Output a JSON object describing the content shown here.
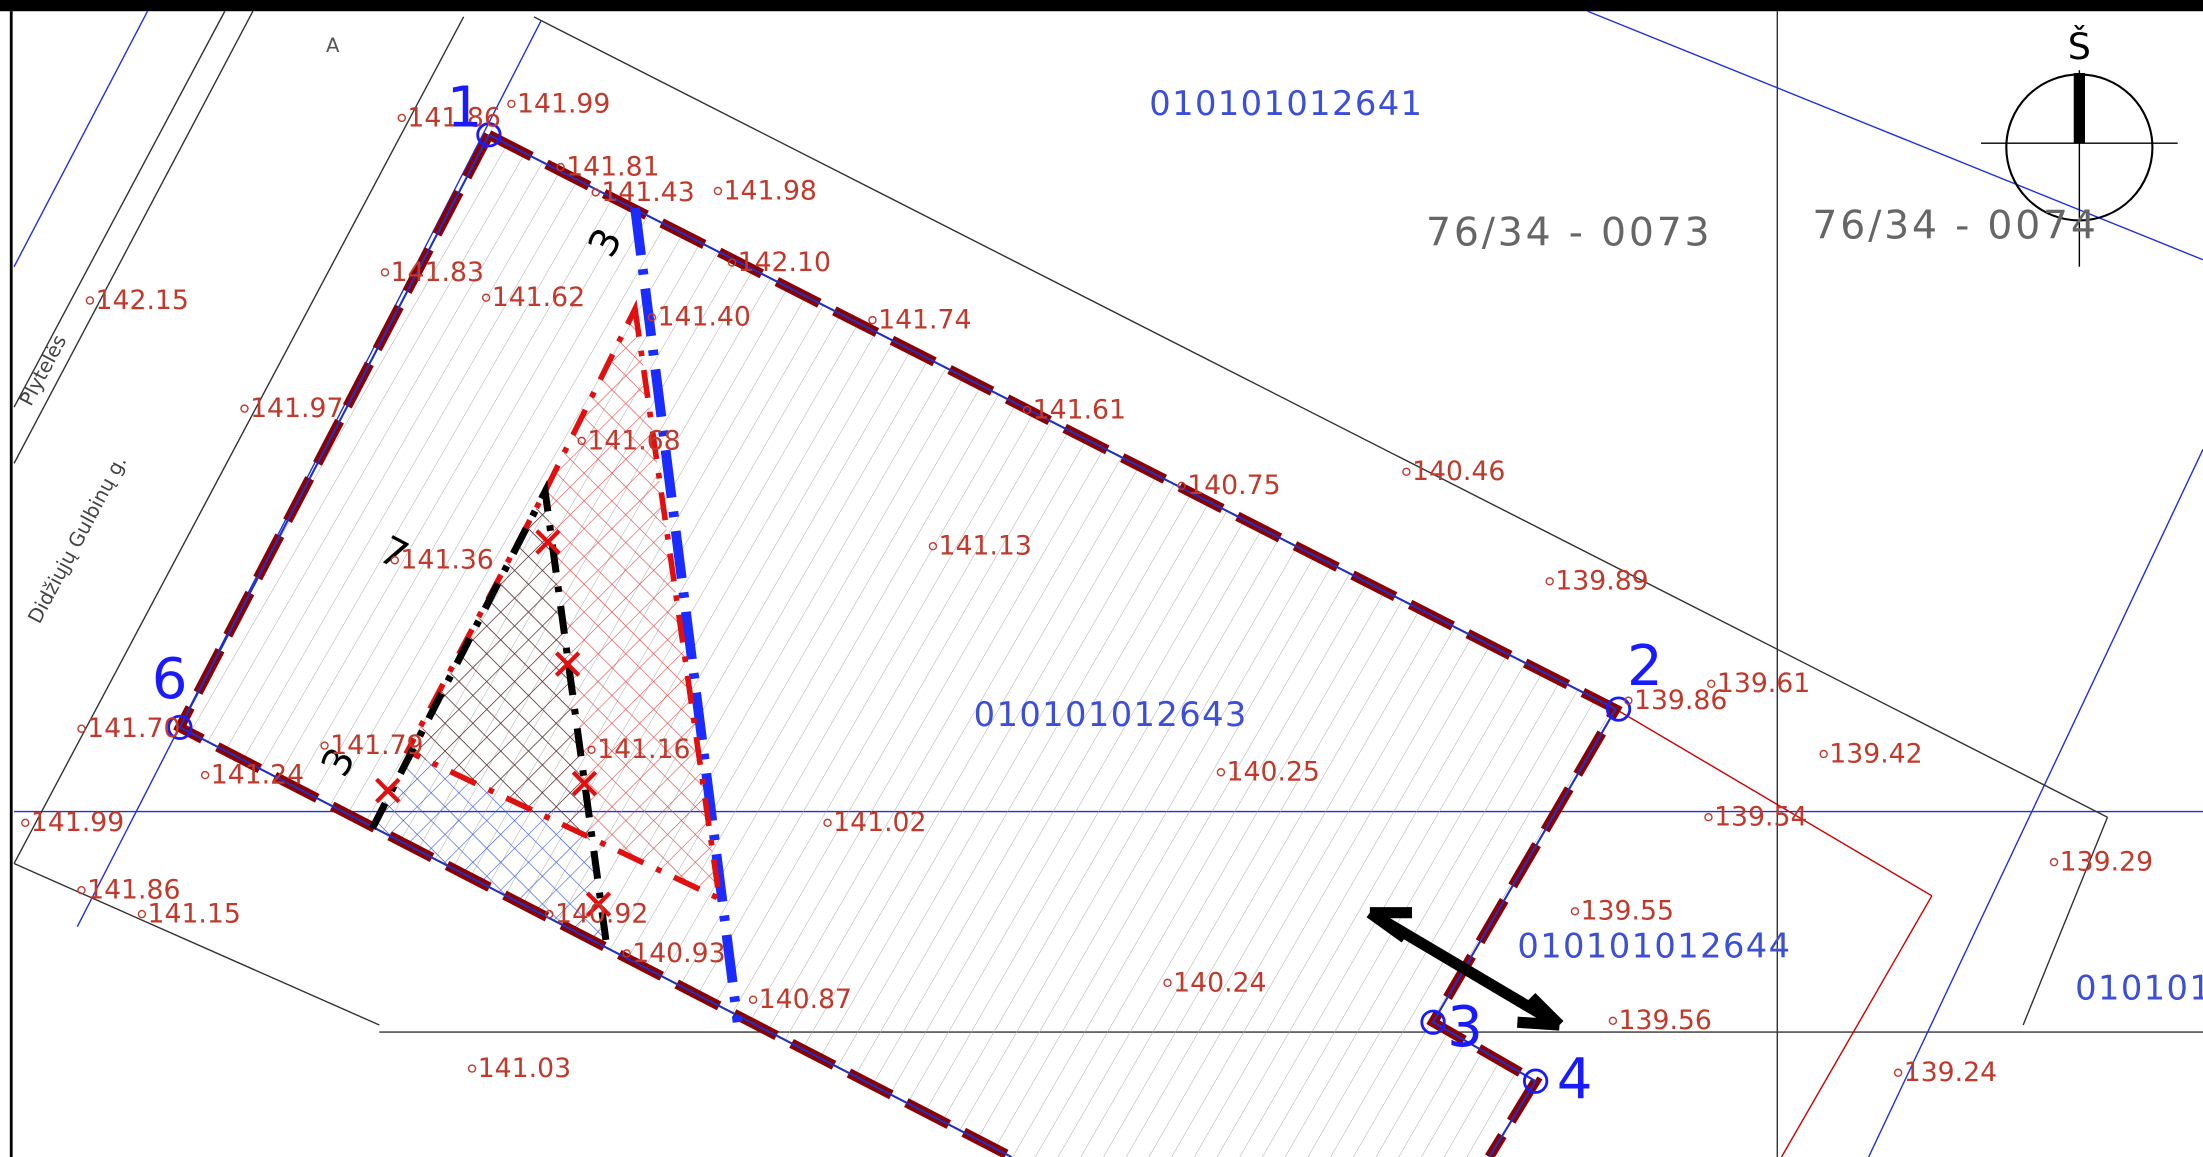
{
  "north": "Š",
  "road_label": "A",
  "streets": [
    "Plytelės",
    "Didžiųjų Gulbinų g."
  ],
  "cadastral": [
    "76/34 - 0073",
    "76/34 - 0074"
  ],
  "dimensions": [
    "3",
    "7",
    "3"
  ],
  "parcels": [
    "010101012641",
    "010101012643",
    "010101012644",
    "010101"
  ],
  "points": [
    "1",
    "2",
    "3",
    "4",
    "6"
  ],
  "elevations": [
    "141.86",
    "141.99",
    "141.81",
    "141.43",
    "141.98",
    "142.10",
    "141.83",
    "141.62",
    "141.40",
    "141.74",
    "142.15",
    "141.97",
    "141.68",
    "141.61",
    "140.75",
    "140.46",
    "141.36",
    "141.13",
    "139.89",
    "139.86",
    "139.61",
    "139.42",
    "141.70",
    "141.79",
    "141.24",
    "141.16",
    "140.25",
    "141.02",
    "139.54",
    "141.99",
    "139.29",
    "141.86",
    "141.15",
    "140.92",
    "139.55",
    "140.93",
    "140.87",
    "140.24",
    "139.56",
    "141.03",
    "139.24"
  ]
}
